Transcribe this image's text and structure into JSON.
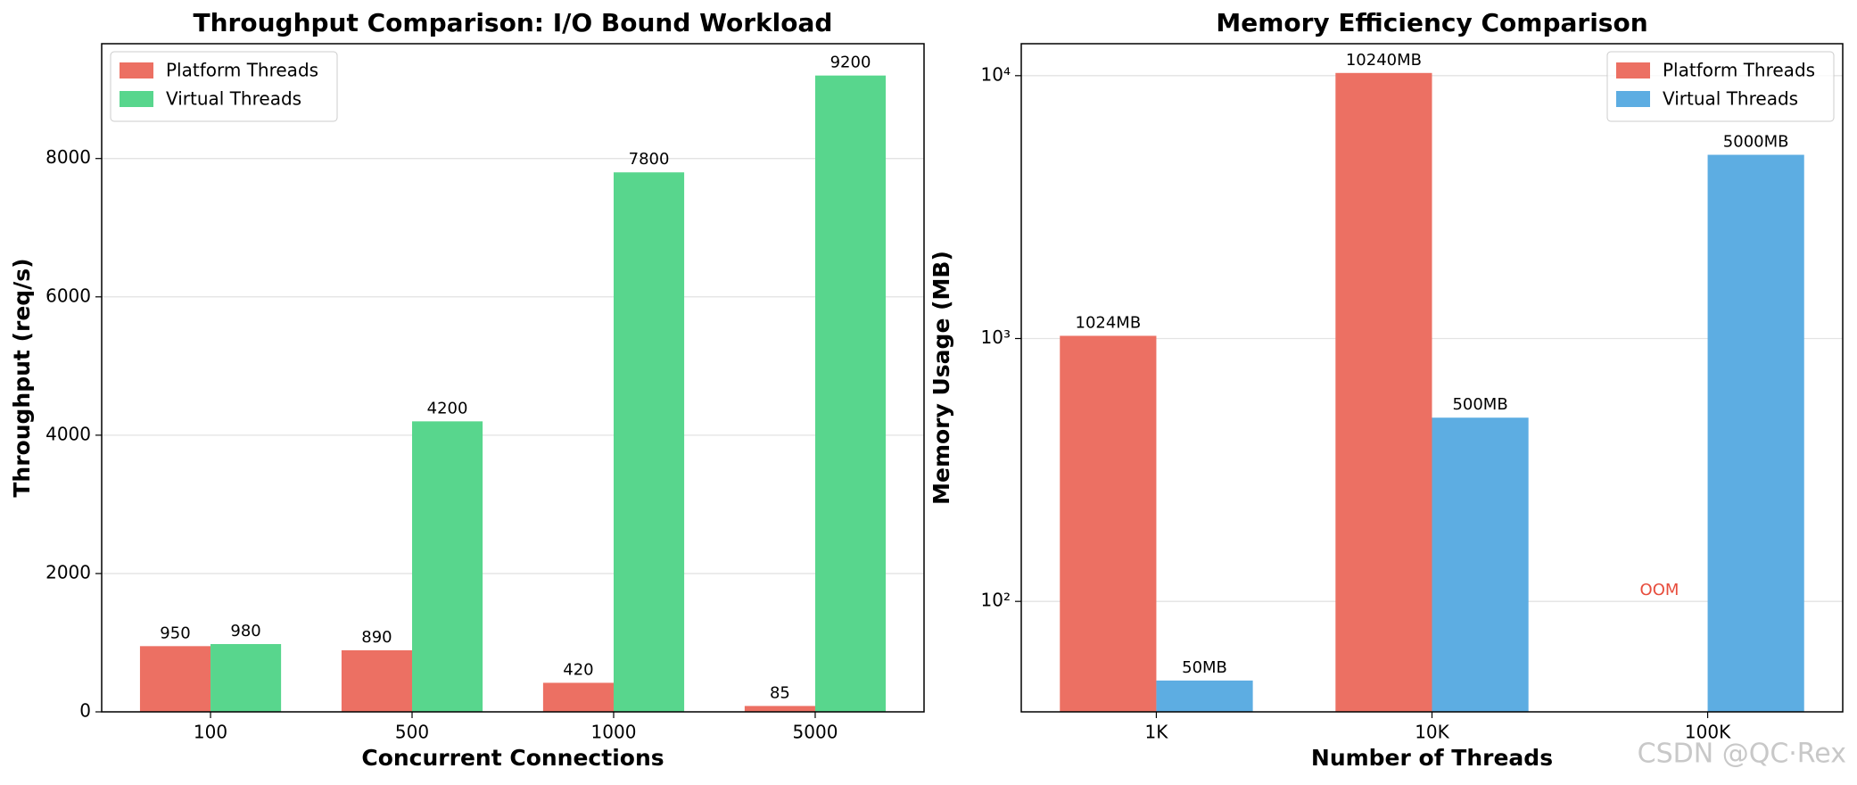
{
  "chart_data": [
    {
      "type": "bar",
      "title": "Throughput Comparison: I/O Bound Workload",
      "xlabel": "Concurrent Connections",
      "ylabel": "Throughput (req/s)",
      "categories": [
        "100",
        "500",
        "1000",
        "5000"
      ],
      "series": [
        {
          "name": "Platform Threads",
          "color": "#ec7063",
          "values": [
            950,
            890,
            420,
            85
          ]
        },
        {
          "name": "Virtual Threads",
          "color": "#58d68d",
          "values": [
            980,
            4200,
            7800,
            9200
          ]
        }
      ],
      "ylim": [
        0,
        9660
      ],
      "yticks": [
        0,
        2000,
        4000,
        6000,
        8000
      ],
      "grid": true,
      "legend": "upper left"
    },
    {
      "type": "bar",
      "title": "Memory Efficiency Comparison",
      "xlabel": "Number of Threads",
      "ylabel": "Memory Usage (MB)",
      "categories": [
        "1K",
        "10K",
        "100K"
      ],
      "series": [
        {
          "name": "Platform Threads",
          "color": "#ec7063",
          "values": [
            1024,
            10240,
            null
          ],
          "value_labels": [
            "1024MB",
            "10240MB",
            null
          ]
        },
        {
          "name": "Virtual Threads",
          "color": "#5dade2",
          "values": [
            50,
            500,
            5000
          ],
          "value_labels": [
            "50MB",
            "500MB",
            "5000MB"
          ]
        }
      ],
      "ylim": [
        38,
        13230
      ],
      "log_scale": true,
      "yticks": [
        {
          "value": 100,
          "label": "10²"
        },
        {
          "value": 1000,
          "label": "10³"
        },
        {
          "value": 10000,
          "label": "10⁴"
        }
      ],
      "grid": true,
      "legend": "upper right",
      "annotations": [
        {
          "text": "OOM",
          "color": "#e74c3c"
        }
      ]
    }
  ],
  "watermark": "CSDN @QC·Rex"
}
